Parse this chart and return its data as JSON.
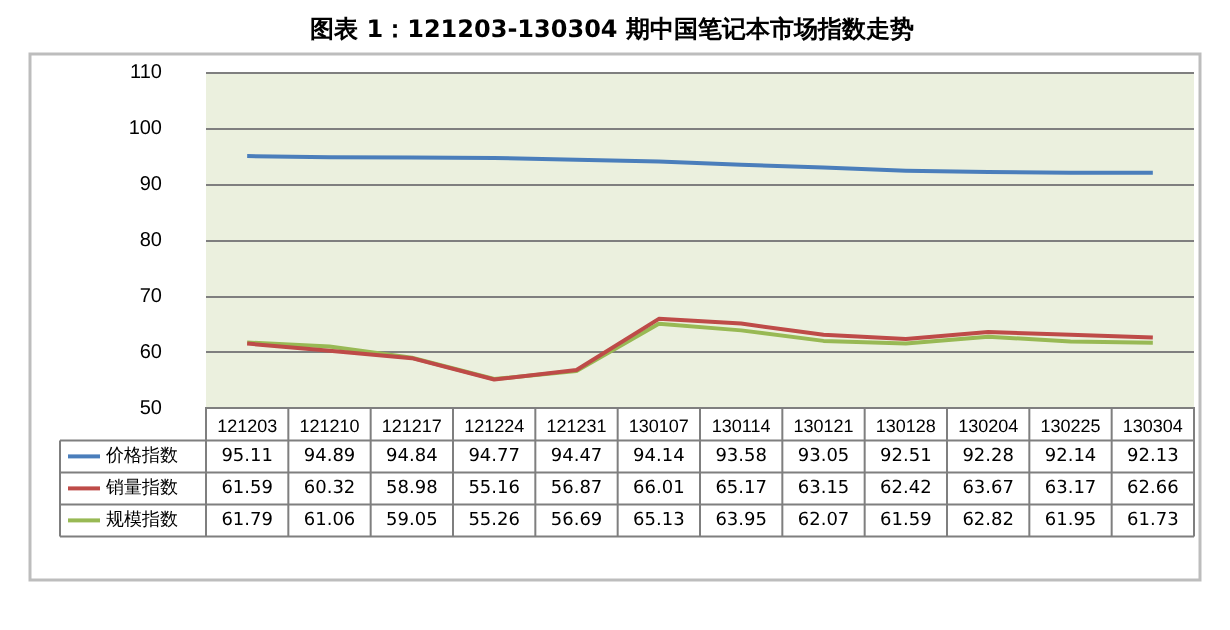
{
  "chart_data": {
    "type": "line",
    "title": "图表 1：121203-130304 期中国笔记本市场指数走势",
    "categories": [
      "121203",
      "121210",
      "121217",
      "121224",
      "121231",
      "130107",
      "130114",
      "130121",
      "130128",
      "130204",
      "130225",
      "130304"
    ],
    "series": [
      {
        "name": "价格指数",
        "color": "#4a7ebb",
        "values": [
          95.11,
          94.89,
          94.84,
          94.77,
          94.47,
          94.14,
          93.58,
          93.05,
          92.51,
          92.28,
          92.14,
          92.13
        ]
      },
      {
        "name": "销量指数",
        "color": "#be4b48",
        "values": [
          61.59,
          60.32,
          58.98,
          55.16,
          56.87,
          66.01,
          65.17,
          63.15,
          62.42,
          63.67,
          63.17,
          62.66
        ]
      },
      {
        "name": "规模指数",
        "color": "#98b954",
        "values": [
          61.79,
          61.06,
          59.05,
          55.26,
          56.69,
          65.13,
          63.95,
          62.07,
          61.59,
          62.82,
          61.95,
          61.73
        ]
      }
    ],
    "ylim": [
      50,
      110
    ],
    "yticks": [
      50,
      60,
      70,
      80,
      90,
      100,
      110
    ],
    "grid": "y",
    "legend": "bottom",
    "data_labels": true,
    "marker": "none",
    "line_style": "solid"
  }
}
